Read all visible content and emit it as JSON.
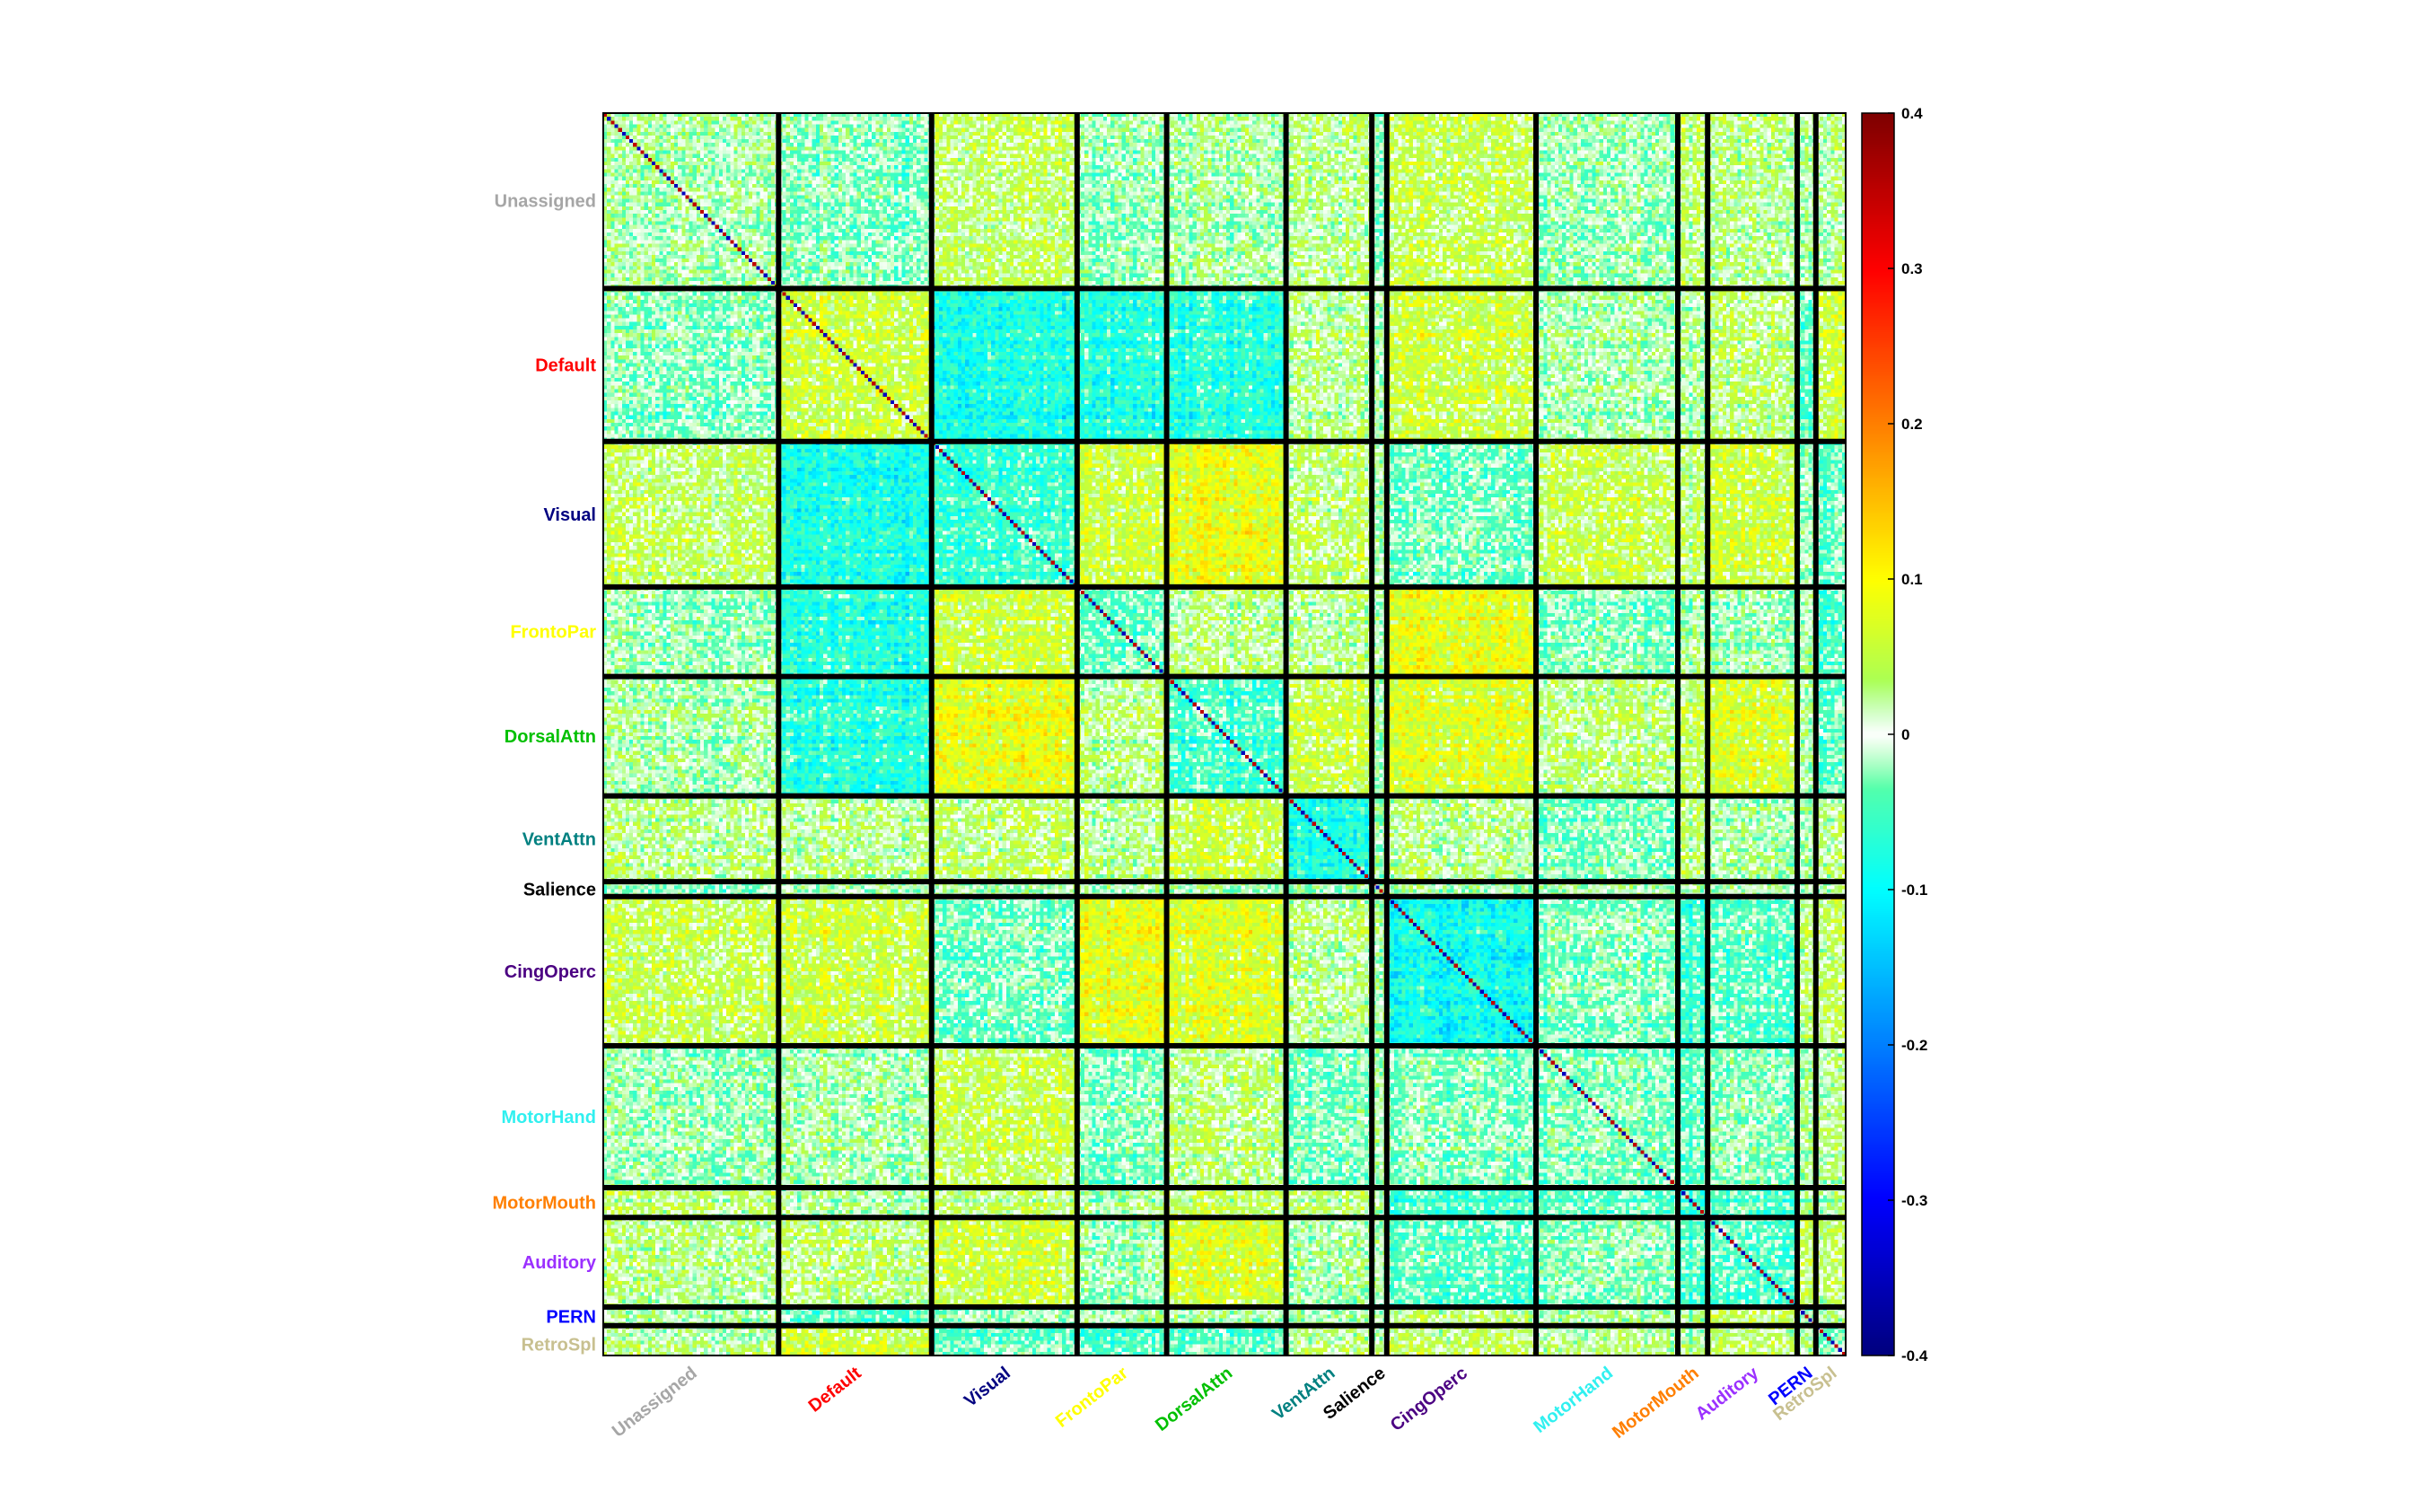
{
  "chart_data": {
    "type": "heatmap",
    "title": "",
    "xlabel": "",
    "ylabel": "",
    "n_nodes": 333,
    "networks": [
      {
        "name": "Unassigned",
        "size": 47,
        "color": "#a6a6a6"
      },
      {
        "name": "Default",
        "size": 41,
        "color": "#ff0000"
      },
      {
        "name": "Visual",
        "size": 39,
        "color": "#000080"
      },
      {
        "name": "FrontoPar",
        "size": 24,
        "color": "#ffff00"
      },
      {
        "name": "DorsalAttn",
        "size": 32,
        "color": "#00c000"
      },
      {
        "name": "VentAttn",
        "size": 23,
        "color": "#008080"
      },
      {
        "name": "Salience",
        "size": 4,
        "color": "#000000"
      },
      {
        "name": "CingOperc",
        "size": 40,
        "color": "#4b0082"
      },
      {
        "name": "MotorHand",
        "size": 38,
        "color": "#30f0f0"
      },
      {
        "name": "MotorMouth",
        "size": 8,
        "color": "#ff7f00"
      },
      {
        "name": "Auditory",
        "size": 24,
        "color": "#9b30ff"
      },
      {
        "name": "PERN",
        "size": 5,
        "color": "#0000ff"
      },
      {
        "name": "RetroSpl",
        "size": 8,
        "color": "#c8c090"
      }
    ],
    "block_mean_values": [
      [
        0.0,
        -0.02,
        0.03,
        -0.01,
        0.0,
        0.02,
        -0.02,
        0.04,
        -0.01,
        0.02,
        0.01,
        0.0,
        0.01
      ],
      [
        -0.02,
        0.05,
        -0.08,
        -0.07,
        -0.07,
        0.02,
        0.0,
        0.05,
        0.0,
        0.0,
        0.02,
        -0.04,
        0.05
      ],
      [
        0.03,
        -0.08,
        -0.06,
        0.05,
        0.08,
        0.03,
        0.0,
        -0.03,
        0.04,
        0.02,
        0.05,
        -0.02,
        -0.04
      ],
      [
        -0.01,
        -0.07,
        0.05,
        -0.03,
        0.02,
        0.02,
        0.0,
        0.08,
        -0.02,
        0.0,
        -0.01,
        0.0,
        -0.05
      ],
      [
        0.0,
        -0.07,
        0.08,
        0.02,
        -0.05,
        0.05,
        0.0,
        0.07,
        0.02,
        0.03,
        0.06,
        0.0,
        -0.04
      ],
      [
        0.02,
        0.02,
        0.03,
        0.02,
        0.05,
        -0.07,
        0.0,
        0.02,
        -0.02,
        0.02,
        0.0,
        0.0,
        0.02
      ],
      [
        -0.02,
        0.0,
        0.0,
        0.0,
        0.0,
        0.0,
        0.0,
        0.0,
        0.0,
        0.0,
        0.0,
        0.0,
        0.0
      ],
      [
        0.04,
        0.05,
        -0.03,
        0.08,
        0.07,
        0.02,
        0.0,
        -0.09,
        -0.02,
        -0.06,
        -0.04,
        0.02,
        0.03
      ],
      [
        -0.01,
        0.0,
        0.04,
        -0.02,
        0.02,
        -0.02,
        0.0,
        -0.02,
        -0.02,
        -0.04,
        -0.02,
        0.0,
        0.01
      ],
      [
        0.02,
        0.0,
        0.02,
        0.0,
        0.03,
        0.02,
        0.0,
        -0.06,
        -0.04,
        -0.07,
        -0.05,
        0.0,
        0.0
      ],
      [
        0.01,
        0.02,
        0.05,
        -0.01,
        0.06,
        0.0,
        0.0,
        -0.04,
        -0.02,
        -0.05,
        -0.05,
        0.03,
        0.02
      ],
      [
        0.0,
        -0.04,
        -0.02,
        0.0,
        0.0,
        0.0,
        0.0,
        0.02,
        0.0,
        0.0,
        0.03,
        -0.03,
        0.0
      ],
      [
        0.01,
        0.05,
        -0.04,
        -0.05,
        -0.04,
        0.02,
        0.0,
        0.03,
        0.01,
        0.0,
        0.02,
        0.0,
        -0.03
      ]
    ],
    "colorbar": {
      "colormap": "jet",
      "clim": [
        -0.4,
        0.4
      ],
      "ticks": [
        -0.4,
        -0.3,
        -0.2,
        -0.1,
        0,
        0.1,
        0.2,
        0.3,
        0.4
      ],
      "tick_labels": [
        "-0.4",
        "-0.3",
        "-0.2",
        "-0.1",
        "0",
        "0.1",
        "0.2",
        "0.3",
        "0.4"
      ]
    },
    "grid": false
  }
}
